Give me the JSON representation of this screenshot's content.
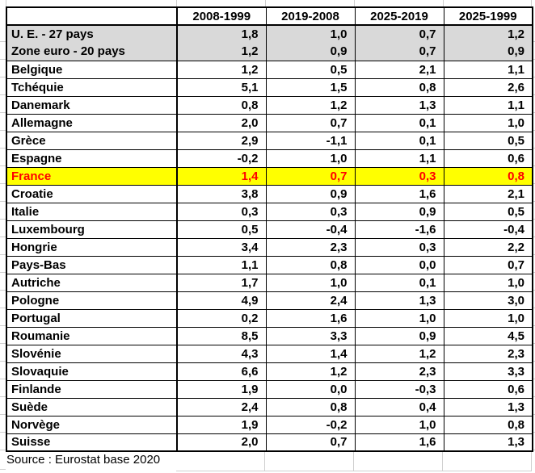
{
  "table": {
    "columns": [
      "",
      "2008-1999",
      "2019-2008",
      "2025-2019",
      "2025-1999"
    ],
    "rows": [
      {
        "label": "U. E. - 27 pays",
        "values": [
          "1,8",
          "1,0",
          "0,7",
          "1,2"
        ],
        "style": "aggregate"
      },
      {
        "label": "Zone euro - 20 pays",
        "values": [
          "1,2",
          "0,9",
          "0,7",
          "0,9"
        ],
        "style": "aggregate"
      },
      {
        "label": "Belgique",
        "values": [
          "1,2",
          "0,5",
          "2,1",
          "1,1"
        ],
        "style": "normal"
      },
      {
        "label": "Tchéquie",
        "values": [
          "5,1",
          "1,5",
          "0,8",
          "2,6"
        ],
        "style": "normal"
      },
      {
        "label": "Danemark",
        "values": [
          "0,8",
          "1,2",
          "1,3",
          "1,1"
        ],
        "style": "normal"
      },
      {
        "label": "Allemagne",
        "values": [
          "2,0",
          "0,7",
          "0,1",
          "1,0"
        ],
        "style": "normal"
      },
      {
        "label": "Grèce",
        "values": [
          "2,9",
          "-1,1",
          "0,1",
          "0,5"
        ],
        "style": "normal"
      },
      {
        "label": "Espagne",
        "values": [
          "-0,2",
          "1,0",
          "1,1",
          "0,6"
        ],
        "style": "normal"
      },
      {
        "label": "France",
        "values": [
          "1,4",
          "0,7",
          "0,3",
          "0,8"
        ],
        "style": "highlight"
      },
      {
        "label": "Croatie",
        "values": [
          "3,8",
          "0,9",
          "1,6",
          "2,1"
        ],
        "style": "normal"
      },
      {
        "label": "Italie",
        "values": [
          "0,3",
          "0,3",
          "0,9",
          "0,5"
        ],
        "style": "normal"
      },
      {
        "label": "Luxembourg",
        "values": [
          "0,5",
          "-0,4",
          "-1,6",
          "-0,4"
        ],
        "style": "normal"
      },
      {
        "label": "Hongrie",
        "values": [
          "3,4",
          "2,3",
          "0,3",
          "2,2"
        ],
        "style": "normal"
      },
      {
        "label": "Pays-Bas",
        "values": [
          "1,1",
          "0,8",
          "0,0",
          "0,7"
        ],
        "style": "normal"
      },
      {
        "label": "Autriche",
        "values": [
          "1,7",
          "1,0",
          "0,1",
          "1,0"
        ],
        "style": "normal"
      },
      {
        "label": "Pologne",
        "values": [
          "4,9",
          "2,4",
          "1,3",
          "3,0"
        ],
        "style": "normal"
      },
      {
        "label": "Portugal",
        "values": [
          "0,2",
          "1,6",
          "1,0",
          "1,0"
        ],
        "style": "normal"
      },
      {
        "label": "Roumanie",
        "values": [
          "8,5",
          "3,3",
          "0,9",
          "4,5"
        ],
        "style": "normal"
      },
      {
        "label": "Slovénie",
        "values": [
          "4,3",
          "1,4",
          "1,2",
          "2,3"
        ],
        "style": "normal"
      },
      {
        "label": "Slovaquie",
        "values": [
          "6,6",
          "1,2",
          "2,3",
          "3,3"
        ],
        "style": "normal"
      },
      {
        "label": "Finlande",
        "values": [
          "1,9",
          "0,0",
          "-0,3",
          "0,6"
        ],
        "style": "normal"
      },
      {
        "label": "Suède",
        "values": [
          "2,4",
          "0,8",
          "0,4",
          "1,3"
        ],
        "style": "normal"
      },
      {
        "label": "Norvège",
        "values": [
          "1,9",
          "-0,2",
          "1,0",
          "0,8"
        ],
        "style": "normal"
      },
      {
        "label": "Suisse",
        "values": [
          "2,0",
          "0,7",
          "1,6",
          "1,3"
        ],
        "style": "normal"
      }
    ]
  },
  "source_note": "Source : Eurostat base 2020",
  "colors": {
    "aggregate_row_bg": "#d9d9d9",
    "highlight_row_bg": "#ffff00",
    "highlight_text": "#ff0000",
    "border": "#000000",
    "gridline": "#cfcfcf"
  }
}
